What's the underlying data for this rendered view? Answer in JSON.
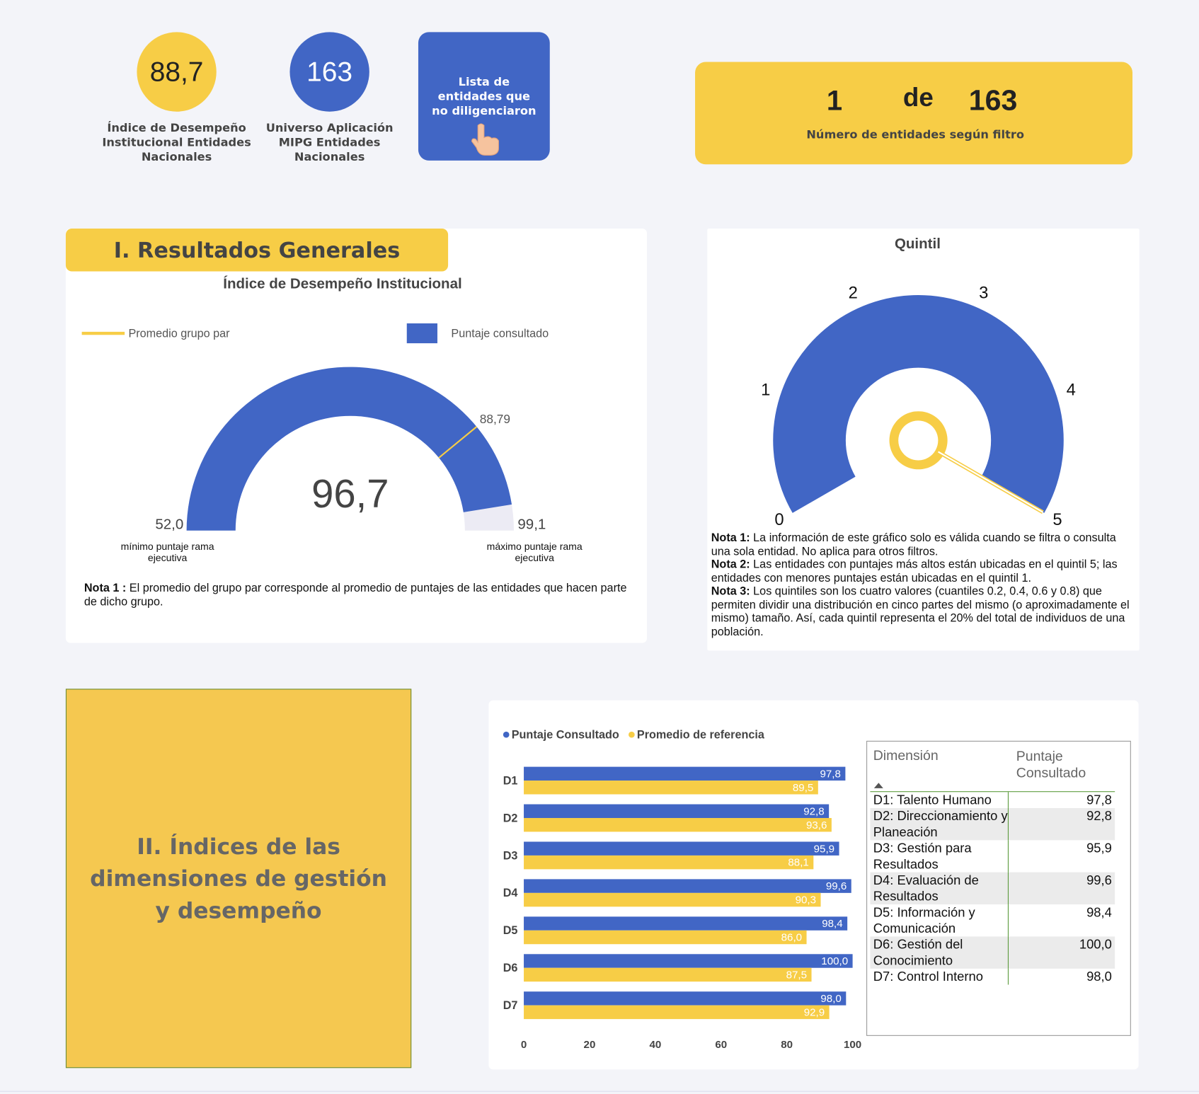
{
  "kpis": [
    {
      "value": "88,7",
      "label": "Índice de Desempeño Institucional Entidades Nacionales"
    },
    {
      "value": "163",
      "label": "Universo Aplicación MIPG Entidades Nacionales"
    }
  ],
  "button": {
    "label": "Lista de entidades que no diligenciaron"
  },
  "counter": {
    "current": "1",
    "separator": "de",
    "total": "163",
    "label": "Número de entidades según filtro"
  },
  "section1": {
    "title": "I. Resultados Generales"
  },
  "gauge": {
    "type": "gauge",
    "title": "Índice de Desempeño Institucional",
    "legend": [
      {
        "name": "Promedio grupo par",
        "color": "#f7cd46"
      },
      {
        "name": "Puntaje consultado",
        "color": "#4166c5"
      }
    ],
    "min": 52.0,
    "min_label": "52,0",
    "max": 99.1,
    "max_label": "99,1",
    "value": 96.7,
    "value_label": "96,7",
    "reference": 88.79,
    "reference_label": "88,79",
    "min_caption": "mínimo puntaje rama ejecutiva",
    "max_caption": "máximo puntaje rama ejecutiva",
    "note": {
      "label": "Nota 1 :",
      "text": " El promedio del grupo par corresponde al promedio de puntajes de las entidades que hacen parte de dicho grupo."
    }
  },
  "quintil": {
    "type": "radial-gauge",
    "title": "Quintil",
    "ticks": [
      0,
      1,
      2,
      3,
      4,
      5
    ],
    "value": 5,
    "color": "#4166c5",
    "needle_color": "#f7cd46",
    "notes": [
      {
        "label": "Nota 1:",
        "text": " La información de este gráfico solo es válida cuando se filtra o consulta una sola entidad. No aplica para otros filtros."
      },
      {
        "label": "Nota 2:",
        "text": " Las entidades con puntajes más altos están ubicadas en el quintil 5; las entidades con menores puntajes están ubicadas en el quintil 1."
      },
      {
        "label": "Nota 3:",
        "text": " Los quintiles son los cuatro valores (cuantiles 0.2, 0.4, 0.6 y 0.8) que permiten dividir una distribución en cinco partes del mismo (o aproximadamente el mismo) tamaño. Así, cada quintil representa el 20% del total de individuos de una población."
      }
    ]
  },
  "section2": {
    "title": "II. Índices de las dimensiones de gestión y desempeño"
  },
  "bar_chart": {
    "type": "bar",
    "orientation": "horizontal",
    "categories": [
      "D1",
      "D2",
      "D3",
      "D4",
      "D5",
      "D6",
      "D7"
    ],
    "series": [
      {
        "name": "Puntaje Consultado",
        "color": "#4166c5",
        "values": [
          97.8,
          92.8,
          95.9,
          99.6,
          98.4,
          100.0,
          98.0
        ],
        "value_labels": [
          "97,8",
          "92,8",
          "95,9",
          "99,6",
          "98,4",
          "100,0",
          "98,0"
        ]
      },
      {
        "name": "Promedio de referencia",
        "color": "#f7cd46",
        "values": [
          89.5,
          93.6,
          88.1,
          90.3,
          86.0,
          87.5,
          92.9
        ],
        "value_labels": [
          "89,5",
          "93,6",
          "88,1",
          "90,3",
          "86,0",
          "87,5",
          "92,9"
        ]
      }
    ],
    "xlim": [
      0,
      100
    ],
    "xticks": [
      0,
      20,
      40,
      60,
      80,
      100
    ]
  },
  "table": {
    "headers": [
      "Dimensión",
      "Puntaje Consultado"
    ],
    "rows": [
      [
        "D1: Talento Humano",
        "97,8"
      ],
      [
        "D2: Direccionamiento y Planeación",
        "92,8"
      ],
      [
        "D3: Gestión para Resultados",
        "95,9"
      ],
      [
        "D4: Evaluación de Resultados",
        "99,6"
      ],
      [
        "D5: Información y Comunicación",
        "98,4"
      ],
      [
        "D6: Gestión del Conocimiento",
        "100,0"
      ],
      [
        "D7: Control Interno",
        "98,0"
      ]
    ]
  }
}
